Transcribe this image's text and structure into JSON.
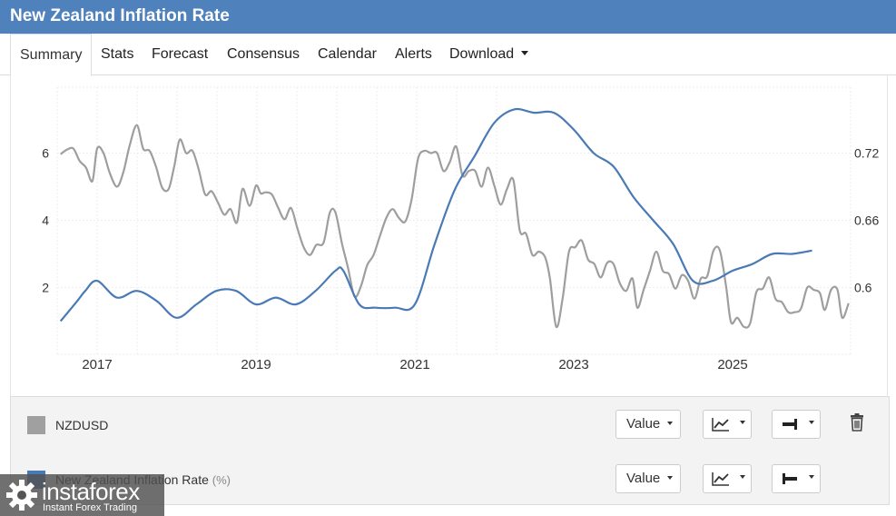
{
  "title": "New Zealand Inflation Rate",
  "tabs": [
    {
      "label": "Summary",
      "active": true
    },
    {
      "label": "Stats"
    },
    {
      "label": "Forecast"
    },
    {
      "label": "Consensus"
    },
    {
      "label": "Calendar"
    },
    {
      "label": "Alerts"
    },
    {
      "label": "Download",
      "dropdown": true
    }
  ],
  "chart_data": {
    "type": "line",
    "x_ticks": [
      "2017",
      "2019",
      "2021",
      "2023",
      "2025"
    ],
    "left_axis": {
      "ticks": [
        "2",
        "4",
        "6"
      ],
      "range": [
        0.9,
        7.4
      ]
    },
    "right_axis": {
      "ticks": [
        "0.6",
        "0.66",
        "0.72"
      ],
      "range": [
        0.55,
        0.77
      ]
    },
    "grid": true,
    "series": [
      {
        "name": "NZDUSD",
        "axis": "right",
        "color": "#9e9e9e",
        "points": [
          [
            2016.54,
            0.719
          ],
          [
            2016.62,
            0.723
          ],
          [
            2016.7,
            0.724
          ],
          [
            2016.78,
            0.713
          ],
          [
            2016.86,
            0.707
          ],
          [
            2016.94,
            0.695
          ],
          [
            2017.0,
            0.724
          ],
          [
            2017.08,
            0.72
          ],
          [
            2017.16,
            0.702
          ],
          [
            2017.25,
            0.69
          ],
          [
            2017.33,
            0.703
          ],
          [
            2017.41,
            0.727
          ],
          [
            2017.5,
            0.745
          ],
          [
            2017.58,
            0.724
          ],
          [
            2017.66,
            0.722
          ],
          [
            2017.74,
            0.708
          ],
          [
            2017.82,
            0.689
          ],
          [
            2017.9,
            0.688
          ],
          [
            2017.97,
            0.708
          ],
          [
            2018.04,
            0.732
          ],
          [
            2018.12,
            0.72
          ],
          [
            2018.2,
            0.722
          ],
          [
            2018.28,
            0.705
          ],
          [
            2018.36,
            0.683
          ],
          [
            2018.44,
            0.686
          ],
          [
            2018.52,
            0.676
          ],
          [
            2018.6,
            0.665
          ],
          [
            2018.68,
            0.67
          ],
          [
            2018.76,
            0.658
          ],
          [
            2018.83,
            0.688
          ],
          [
            2018.92,
            0.673
          ],
          [
            2019.0,
            0.691
          ],
          [
            2019.06,
            0.684
          ],
          [
            2019.12,
            0.685
          ],
          [
            2019.2,
            0.683
          ],
          [
            2019.28,
            0.671
          ],
          [
            2019.36,
            0.661
          ],
          [
            2019.44,
            0.671
          ],
          [
            2019.52,
            0.653
          ],
          [
            2019.6,
            0.636
          ],
          [
            2019.68,
            0.629
          ],
          [
            2019.76,
            0.638
          ],
          [
            2019.85,
            0.64
          ],
          [
            2019.93,
            0.667
          ],
          [
            2020.0,
            0.667
          ],
          [
            2020.08,
            0.64
          ],
          [
            2020.16,
            0.617
          ],
          [
            2020.24,
            0.592
          ],
          [
            2020.32,
            0.601
          ],
          [
            2020.4,
            0.62
          ],
          [
            2020.48,
            0.629
          ],
          [
            2020.56,
            0.646
          ],
          [
            2020.64,
            0.662
          ],
          [
            2020.72,
            0.67
          ],
          [
            2020.8,
            0.662
          ],
          [
            2020.88,
            0.659
          ],
          [
            2020.96,
            0.679
          ],
          [
            2021.04,
            0.715
          ],
          [
            2021.12,
            0.722
          ],
          [
            2021.2,
            0.72
          ],
          [
            2021.28,
            0.72
          ],
          [
            2021.36,
            0.704
          ],
          [
            2021.44,
            0.712
          ],
          [
            2021.52,
            0.726
          ],
          [
            2021.6,
            0.7
          ],
          [
            2021.68,
            0.704
          ],
          [
            2021.76,
            0.704
          ],
          [
            2021.84,
            0.69
          ],
          [
            2021.92,
            0.707
          ],
          [
            2022.0,
            0.691
          ],
          [
            2022.08,
            0.674
          ],
          [
            2022.16,
            0.688
          ],
          [
            2022.24,
            0.696
          ],
          [
            2022.32,
            0.651
          ],
          [
            2022.4,
            0.648
          ],
          [
            2022.48,
            0.629
          ],
          [
            2022.56,
            0.632
          ],
          [
            2022.64,
            0.627
          ],
          [
            2022.7,
            0.608
          ],
          [
            2022.78,
            0.565
          ],
          [
            2022.86,
            0.59
          ],
          [
            2022.94,
            0.632
          ],
          [
            2023.02,
            0.636
          ],
          [
            2023.1,
            0.642
          ],
          [
            2023.18,
            0.625
          ],
          [
            2023.26,
            0.621
          ],
          [
            2023.34,
            0.609
          ],
          [
            2023.42,
            0.622
          ],
          [
            2023.5,
            0.621
          ],
          [
            2023.58,
            0.604
          ],
          [
            2023.66,
            0.597
          ],
          [
            2023.74,
            0.608
          ],
          [
            2023.8,
            0.582
          ],
          [
            2023.88,
            0.598
          ],
          [
            2023.96,
            0.615
          ],
          [
            2024.04,
            0.632
          ],
          [
            2024.12,
            0.615
          ],
          [
            2024.2,
            0.612
          ],
          [
            2024.28,
            0.599
          ],
          [
            2024.36,
            0.611
          ],
          [
            2024.44,
            0.606
          ],
          [
            2024.52,
            0.59
          ],
          [
            2024.6,
            0.608
          ],
          [
            2024.68,
            0.61
          ],
          [
            2024.76,
            0.633
          ],
          [
            2024.84,
            0.633
          ],
          [
            2024.92,
            0.6
          ],
          [
            2024.98,
            0.569
          ],
          [
            2025.06,
            0.573
          ],
          [
            2025.14,
            0.565
          ],
          [
            2025.22,
            0.568
          ],
          [
            2025.3,
            0.596
          ],
          [
            2025.38,
            0.599
          ],
          [
            2025.46,
            0.609
          ],
          [
            2025.54,
            0.59
          ],
          [
            2025.62,
            0.587
          ],
          [
            2025.7,
            0.578
          ],
          [
            2025.78,
            0.578
          ],
          [
            2025.86,
            0.581
          ],
          [
            2025.94,
            0.6
          ],
          [
            2026.02,
            0.598
          ],
          [
            2026.1,
            0.595
          ],
          [
            2026.16,
            0.58
          ],
          [
            2026.24,
            0.598
          ],
          [
            2026.32,
            0.598
          ],
          [
            2026.38,
            0.573
          ],
          [
            2026.46,
            0.586
          ]
        ]
      },
      {
        "name": "New Zealand Inflation Rate",
        "unit": "(%)",
        "axis": "left",
        "color": "#4a7ab5",
        "points": [
          [
            2016.54,
            1.0
          ],
          [
            2016.75,
            1.6
          ],
          [
            2016.85,
            1.9
          ],
          [
            2017.0,
            2.2
          ],
          [
            2017.25,
            1.7
          ],
          [
            2017.5,
            1.9
          ],
          [
            2017.75,
            1.6
          ],
          [
            2018.0,
            1.1
          ],
          [
            2018.25,
            1.5
          ],
          [
            2018.5,
            1.9
          ],
          [
            2018.75,
            1.9
          ],
          [
            2019.0,
            1.5
          ],
          [
            2019.25,
            1.7
          ],
          [
            2019.5,
            1.5
          ],
          [
            2019.75,
            1.9
          ],
          [
            2020.0,
            2.5
          ],
          [
            2020.1,
            2.5
          ],
          [
            2020.3,
            1.5
          ],
          [
            2020.5,
            1.4
          ],
          [
            2020.75,
            1.4
          ],
          [
            2021.0,
            1.5
          ],
          [
            2021.25,
            3.3
          ],
          [
            2021.5,
            4.9
          ],
          [
            2021.75,
            5.9
          ],
          [
            2022.0,
            6.9
          ],
          [
            2022.25,
            7.3
          ],
          [
            2022.5,
            7.2
          ],
          [
            2022.75,
            7.2
          ],
          [
            2023.0,
            6.7
          ],
          [
            2023.25,
            6.0
          ],
          [
            2023.5,
            5.6
          ],
          [
            2023.75,
            4.7
          ],
          [
            2024.0,
            4.0
          ],
          [
            2024.25,
            3.3
          ],
          [
            2024.5,
            2.2
          ],
          [
            2024.75,
            2.2
          ],
          [
            2025.0,
            2.5
          ],
          [
            2025.25,
            2.7
          ],
          [
            2025.5,
            3.0
          ],
          [
            2025.75,
            3.0
          ],
          [
            2026.0,
            3.1
          ]
        ]
      }
    ]
  },
  "legend": [
    {
      "name": "NZDUSD",
      "unit": "",
      "color": "#a0a0a0",
      "value_label": "Value",
      "deletable": true
    },
    {
      "name": "New Zealand Inflation Rate",
      "unit": "(%)",
      "color": "#4a7ab5",
      "value_label": "Value",
      "deletable": false
    }
  ],
  "watermark": {
    "brand": "instaforex",
    "tagline": "Instant Forex Trading"
  }
}
